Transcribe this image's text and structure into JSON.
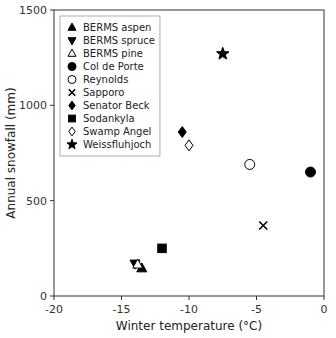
{
  "chart_data": {
    "type": "scatter",
    "xlabel": "Winter temperature (°C)",
    "ylabel": "Annual snowfall (mm)",
    "series": [
      {
        "name": "BERMS aspen",
        "marker": "triangle-up",
        "color": "black",
        "x": [
          -13.5
        ],
        "values": [
          145
        ]
      },
      {
        "name": "BERMS spruce",
        "marker": "triangle-down",
        "color": "black",
        "x": [
          -14.0
        ],
        "values": [
          170
        ]
      },
      {
        "name": "BERMS pine",
        "marker": "triangle-up-open",
        "color": "black",
        "x": [
          -13.8
        ],
        "values": [
          165
        ]
      },
      {
        "name": "Col de Porte",
        "marker": "circle",
        "color": "black",
        "x": [
          -1.0
        ],
        "values": [
          650
        ]
      },
      {
        "name": "Reynolds",
        "marker": "circle-open",
        "color": "black",
        "x": [
          -5.5
        ],
        "values": [
          690
        ]
      },
      {
        "name": "Sapporo",
        "marker": "x",
        "color": "black",
        "x": [
          -4.5
        ],
        "values": [
          370
        ]
      },
      {
        "name": "Senator Beck",
        "marker": "diamond",
        "color": "black",
        "x": [
          -10.5
        ],
        "values": [
          860
        ]
      },
      {
        "name": "Sodankyla",
        "marker": "square",
        "color": "black",
        "x": [
          -12.0
        ],
        "values": [
          250
        ]
      },
      {
        "name": "Swamp Angel",
        "marker": "diamond-open",
        "color": "black",
        "x": [
          -10.0
        ],
        "values": [
          790
        ]
      },
      {
        "name": "Weissfluhjoch",
        "marker": "star",
        "color": "black",
        "x": [
          -7.5
        ],
        "values": [
          1270
        ]
      }
    ],
    "xlim": [
      -20,
      0
    ],
    "ylim": [
      0,
      1500
    ],
    "xticks": [
      -20,
      -15,
      -10,
      -5,
      0
    ],
    "yticks": [
      0,
      500,
      1000,
      1500
    ],
    "grid": false,
    "legend": "upper-left"
  }
}
